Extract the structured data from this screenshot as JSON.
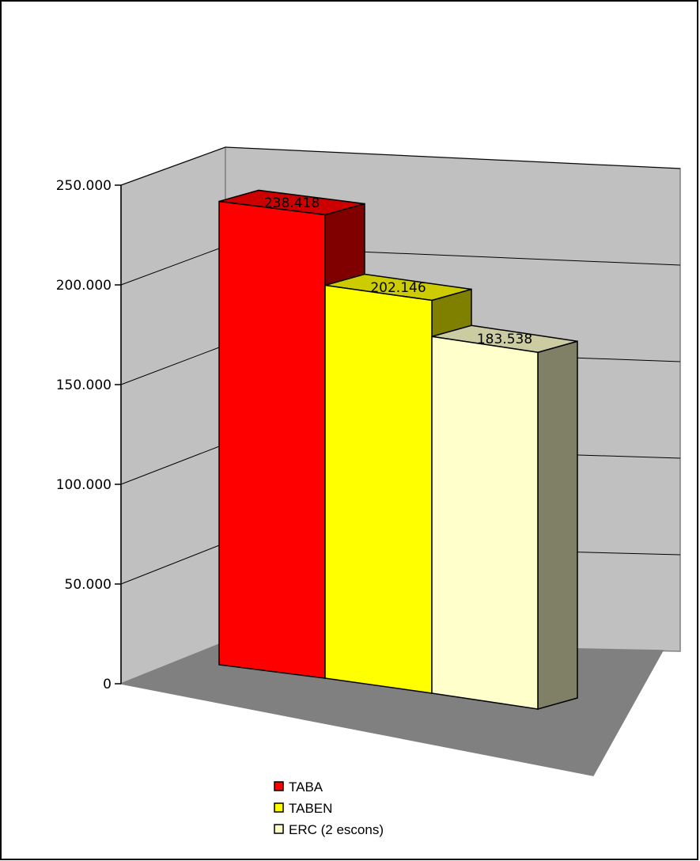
{
  "chart_data": {
    "type": "bar",
    "three_d": true,
    "grid": true,
    "legend_position": "bottom",
    "ylim": [
      0,
      250000
    ],
    "y_ticks": [
      {
        "value": 0,
        "label": "0"
      },
      {
        "value": 50000,
        "label": "50.000"
      },
      {
        "value": 100000,
        "label": "100.000"
      },
      {
        "value": 150000,
        "label": "150.000"
      },
      {
        "value": 200000,
        "label": "200.000"
      },
      {
        "value": 250000,
        "label": "250.000"
      }
    ],
    "series": [
      {
        "name": "TABA",
        "value": 238418,
        "value_label": "238.418",
        "color": "#ff0000",
        "side_color": "#800000",
        "top_color": "#cc0000"
      },
      {
        "name": "TABEN",
        "value": 202146,
        "value_label": "202.146",
        "color": "#ffff00",
        "side_color": "#808000",
        "top_color": "#cccc00"
      },
      {
        "name": "ERC (2 escons)",
        "value": 183538,
        "value_label": "183.538",
        "color": "#ffffcc",
        "side_color": "#808066",
        "top_color": "#cccca3"
      }
    ],
    "walls": {
      "back": "#c0c0c0",
      "side": "#c0c0c0",
      "floor": "#808080"
    }
  }
}
